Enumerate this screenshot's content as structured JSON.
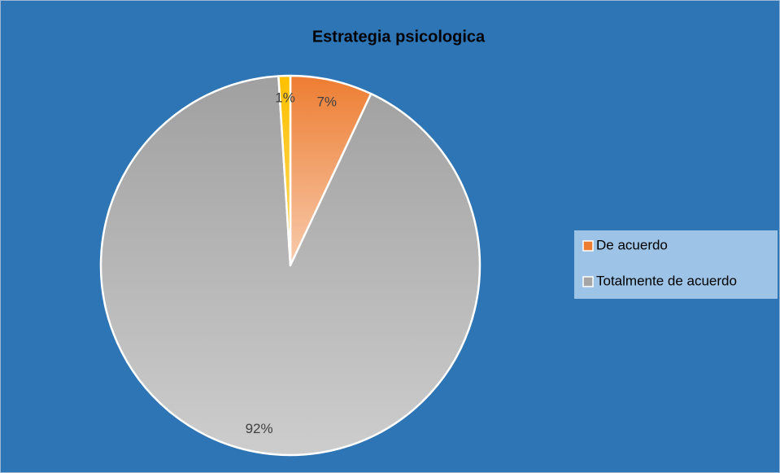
{
  "chart_data": {
    "type": "pie",
    "title": "Estrategia psicologica",
    "categories": [
      "De acuerdo",
      "Totalmente de acuerdo",
      null
    ],
    "values": [
      7,
      92,
      1
    ],
    "value_labels": [
      "7%",
      "92%",
      "1%"
    ],
    "colors": [
      "#ed7d31",
      "#a5a5a5",
      "#ffc000"
    ],
    "legend": "right"
  }
}
